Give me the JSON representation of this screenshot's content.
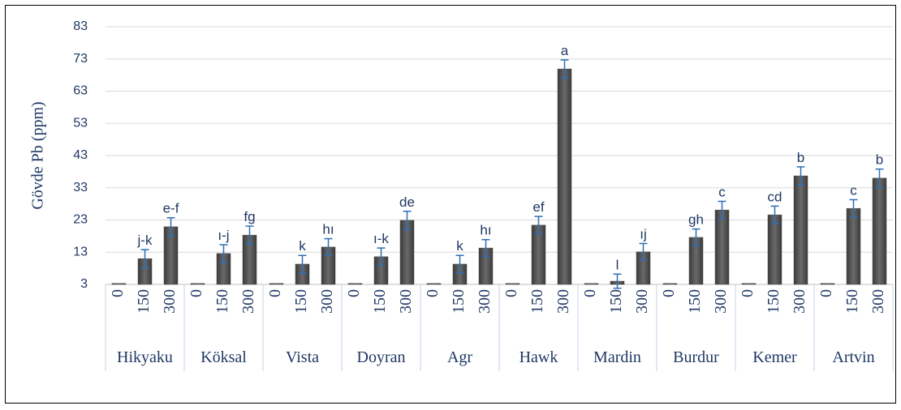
{
  "chart_data": {
    "type": "bar",
    "y_label": "Gövde Pb (ppm)",
    "categories": [
      "Hikyaku",
      "Köksal",
      "Vista",
      "Doyran",
      "Agr",
      "Hawk",
      "Mardin",
      "Burdur",
      "Kemer",
      "Artvin"
    ],
    "doses": [
      0,
      150,
      300
    ],
    "values": [
      [
        3.3,
        11.0,
        20.9
      ],
      [
        3.3,
        12.6,
        18.3
      ],
      [
        3.3,
        9.3,
        14.6
      ],
      [
        3.3,
        11.6,
        22.9
      ],
      [
        3.3,
        9.3,
        14.3
      ],
      [
        3.3,
        21.4,
        69.9
      ],
      [
        3.3,
        4.0,
        13.1
      ],
      [
        3.3,
        17.6,
        26.1
      ],
      [
        3.3,
        24.6,
        36.7
      ],
      [
        3.3,
        26.6,
        36.0
      ]
    ],
    "errors": [
      [
        null,
        2.8,
        2.8
      ],
      [
        null,
        2.7,
        2.8
      ],
      [
        null,
        2.7,
        2.6
      ],
      [
        null,
        2.7,
        2.8
      ],
      [
        null,
        2.7,
        2.6
      ],
      [
        null,
        2.7,
        2.8
      ],
      [
        null,
        2.2,
        2.6
      ],
      [
        null,
        2.6,
        2.7
      ],
      [
        null,
        2.7,
        2.8
      ],
      [
        null,
        2.7,
        2.8
      ]
    ],
    "letters": [
      [
        null,
        "j-k",
        "e-f"
      ],
      [
        null,
        "ı-j",
        "fg"
      ],
      [
        null,
        "k",
        "hı"
      ],
      [
        null,
        "ı-k",
        "de"
      ],
      [
        null,
        "k",
        "hı"
      ],
      [
        null,
        "ef",
        "a"
      ],
      [
        null,
        "l",
        "ıj"
      ],
      [
        null,
        "gh",
        "c"
      ],
      [
        null,
        "cd",
        "b"
      ],
      [
        null,
        "c",
        "b"
      ]
    ],
    "color": "#4d4d4d",
    "error_color": "#2e6db4",
    "ylim": [
      3,
      83
    ],
    "yticks": [
      3,
      13,
      23,
      33,
      43,
      53,
      63,
      73,
      83
    ],
    "grid": true
  }
}
